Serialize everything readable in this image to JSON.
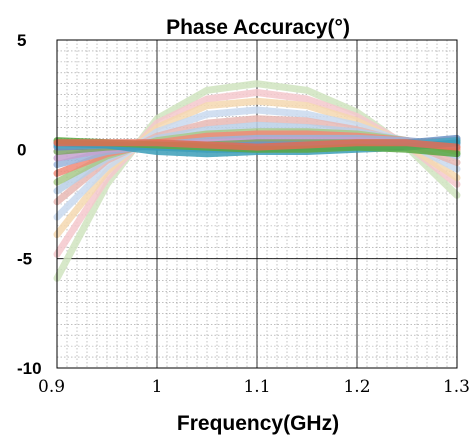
{
  "chart_data": {
    "type": "line",
    "title": "Phase Accuracy(°)",
    "xlabel": "Frequency(GHz)",
    "ylabel": "",
    "xlim": [
      0.9,
      1.3
    ],
    "ylim": [
      -10,
      5
    ],
    "x_ticks": [
      "0.9",
      "1",
      "1.1",
      "1.2",
      "1.3"
    ],
    "y_ticks": [
      "5",
      "0",
      "-5",
      "-10"
    ],
    "grid": {
      "major": true,
      "minor": true
    },
    "legend": "none",
    "x": [
      0.9,
      0.95,
      1.0,
      1.05,
      1.1,
      1.15,
      1.2,
      1.25,
      1.3
    ],
    "series": [
      {
        "color": "#d0e4c0",
        "values": [
          -5.9,
          -1.6,
          1.4,
          2.7,
          3.0,
          2.7,
          1.7,
          0.1,
          -2.1
        ]
      },
      {
        "color": "#f4c8cc",
        "values": [
          -4.8,
          -1.3,
          1.2,
          2.3,
          2.6,
          2.3,
          1.5,
          0.2,
          -1.6
        ]
      },
      {
        "color": "#f5d8b0",
        "values": [
          -3.9,
          -1.0,
          1.0,
          2.0,
          2.2,
          2.0,
          1.3,
          0.2,
          -1.3
        ]
      },
      {
        "color": "#c9d9ee",
        "values": [
          -3.1,
          -0.8,
          0.8,
          1.6,
          1.8,
          1.6,
          1.1,
          0.3,
          -0.9
        ]
      },
      {
        "color": "#e8b8b4",
        "values": [
          -2.4,
          -0.5,
          0.6,
          1.2,
          1.4,
          1.3,
          0.9,
          0.3,
          -0.6
        ]
      },
      {
        "color": "#b9cfe6",
        "values": [
          -1.9,
          -0.4,
          0.5,
          0.9,
          1.1,
          1.0,
          0.8,
          0.4,
          -0.3
        ]
      },
      {
        "color": "#a8c98a",
        "values": [
          -1.5,
          -0.3,
          0.4,
          0.7,
          0.8,
          0.8,
          0.7,
          0.4,
          -0.1
        ]
      },
      {
        "color": "#f08a78",
        "values": [
          -1.1,
          -0.2,
          0.3,
          0.6,
          0.7,
          0.7,
          0.6,
          0.4,
          0.0
        ]
      },
      {
        "color": "#9ab4da",
        "values": [
          -0.7,
          -0.1,
          0.2,
          0.4,
          0.5,
          0.5,
          0.5,
          0.4,
          0.2
        ]
      },
      {
        "color": "#c6a1cf",
        "values": [
          -0.4,
          0.0,
          0.2,
          0.3,
          0.4,
          0.4,
          0.4,
          0.3,
          0.3
        ]
      },
      {
        "color": "#7fa36a",
        "values": [
          -0.1,
          0.1,
          0.2,
          0.2,
          0.3,
          0.3,
          0.3,
          0.3,
          0.4
        ]
      },
      {
        "color": "#6d93c7",
        "values": [
          0.1,
          0.2,
          0.1,
          0.1,
          0.2,
          0.2,
          0.2,
          0.3,
          0.5
        ]
      },
      {
        "color": "#4aa7c4",
        "values": [
          0.2,
          0.2,
          0.1,
          0.0,
          0.0,
          0.1,
          0.1,
          0.2,
          0.4
        ]
      },
      {
        "color": "#3b9db8",
        "values": [
          0.3,
          0.2,
          -0.1,
          -0.2,
          -0.1,
          -0.1,
          0.0,
          0.1,
          0.3
        ]
      },
      {
        "color": "#5aa843",
        "values": [
          0.4,
          0.3,
          0.2,
          0.1,
          0.0,
          0.0,
          0.1,
          0.0,
          -0.2
        ]
      },
      {
        "color": "#e06c55",
        "values": [
          0.3,
          0.3,
          0.3,
          0.2,
          0.1,
          0.2,
          0.3,
          0.3,
          0.1
        ]
      }
    ]
  }
}
